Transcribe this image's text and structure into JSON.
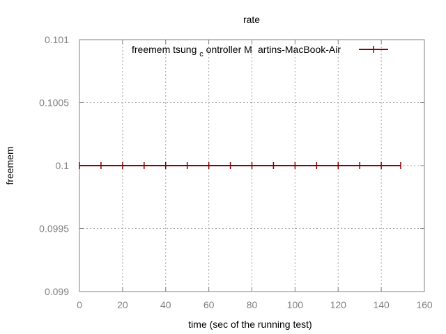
{
  "chart_data": {
    "type": "line",
    "title": "rate",
    "xlabel": "time (sec of the running test)",
    "ylabel": "freemem",
    "xlim": [
      0,
      160
    ],
    "ylim": [
      0.099,
      0.101
    ],
    "xticks": [
      "0",
      "20",
      "40",
      "60",
      "80",
      "100",
      "120",
      "140",
      "160"
    ],
    "yticks": [
      "0.099",
      "0.0995",
      "0.1",
      "0.1005",
      "0.101"
    ],
    "grid": true,
    "legend_position": "top-right",
    "series": [
      {
        "name": "freemem tsung_controller@Martins-MacBook-Air",
        "legend_display": {
          "main": "freemem tsung",
          "sub": "c",
          "rest": "ontroller M",
          "overlap": "artins-MacBook-Air"
        },
        "color": "#8b0000",
        "marker": "plus",
        "x": [
          0,
          10,
          20,
          30,
          40,
          50,
          60,
          70,
          80,
          90,
          100,
          110,
          120,
          130,
          140,
          149
        ],
        "y": [
          0.1,
          0.1,
          0.1,
          0.1,
          0.1,
          0.1,
          0.1,
          0.1,
          0.1,
          0.1,
          0.1,
          0.1,
          0.1,
          0.1,
          0.1,
          0.1
        ]
      }
    ]
  }
}
